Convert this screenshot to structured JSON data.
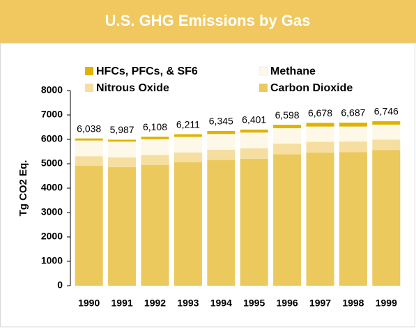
{
  "chart_data": {
    "type": "stacked_bar",
    "title": "U.S. GHG Emissions by Gas",
    "y_label": "Tg CO2 Eq.",
    "categories": [
      "1990",
      "1991",
      "1992",
      "1993",
      "1994",
      "1995",
      "1996",
      "1997",
      "1998",
      "1999"
    ],
    "series": [
      {
        "name": "Carbon Dioxide",
        "color": "#ebc95c",
        "values": [
          4914,
          4862,
          4953,
          5062,
          5155,
          5207,
          5389,
          5462,
          5479,
          5558
        ]
      },
      {
        "name": "Nitrous Oxide",
        "color": "#f5dea0",
        "values": [
          396,
          397,
          405,
          401,
          420,
          431,
          434,
          436,
          432,
          433
        ]
      },
      {
        "name": "Methane",
        "color": "#fdf8e8",
        "values": [
          644,
          648,
          647,
          639,
          646,
          641,
          636,
          627,
          615,
          613
        ]
      },
      {
        "name": "HFCs, PFCs, & SF6",
        "color": "#dfb300",
        "values": [
          84,
          80,
          103,
          109,
          124,
          122,
          139,
          153,
          161,
          142
        ]
      }
    ],
    "total_labels": [
      "6,038",
      "5,987",
      "6,108",
      "6,211",
      "6,345",
      "6,401",
      "6,598",
      "6,678",
      "6,687",
      "6,746"
    ],
    "ylim": [
      0,
      8000
    ],
    "yticks": [
      0,
      1000,
      2000,
      3000,
      4000,
      5000,
      6000,
      7000,
      8000
    ]
  }
}
